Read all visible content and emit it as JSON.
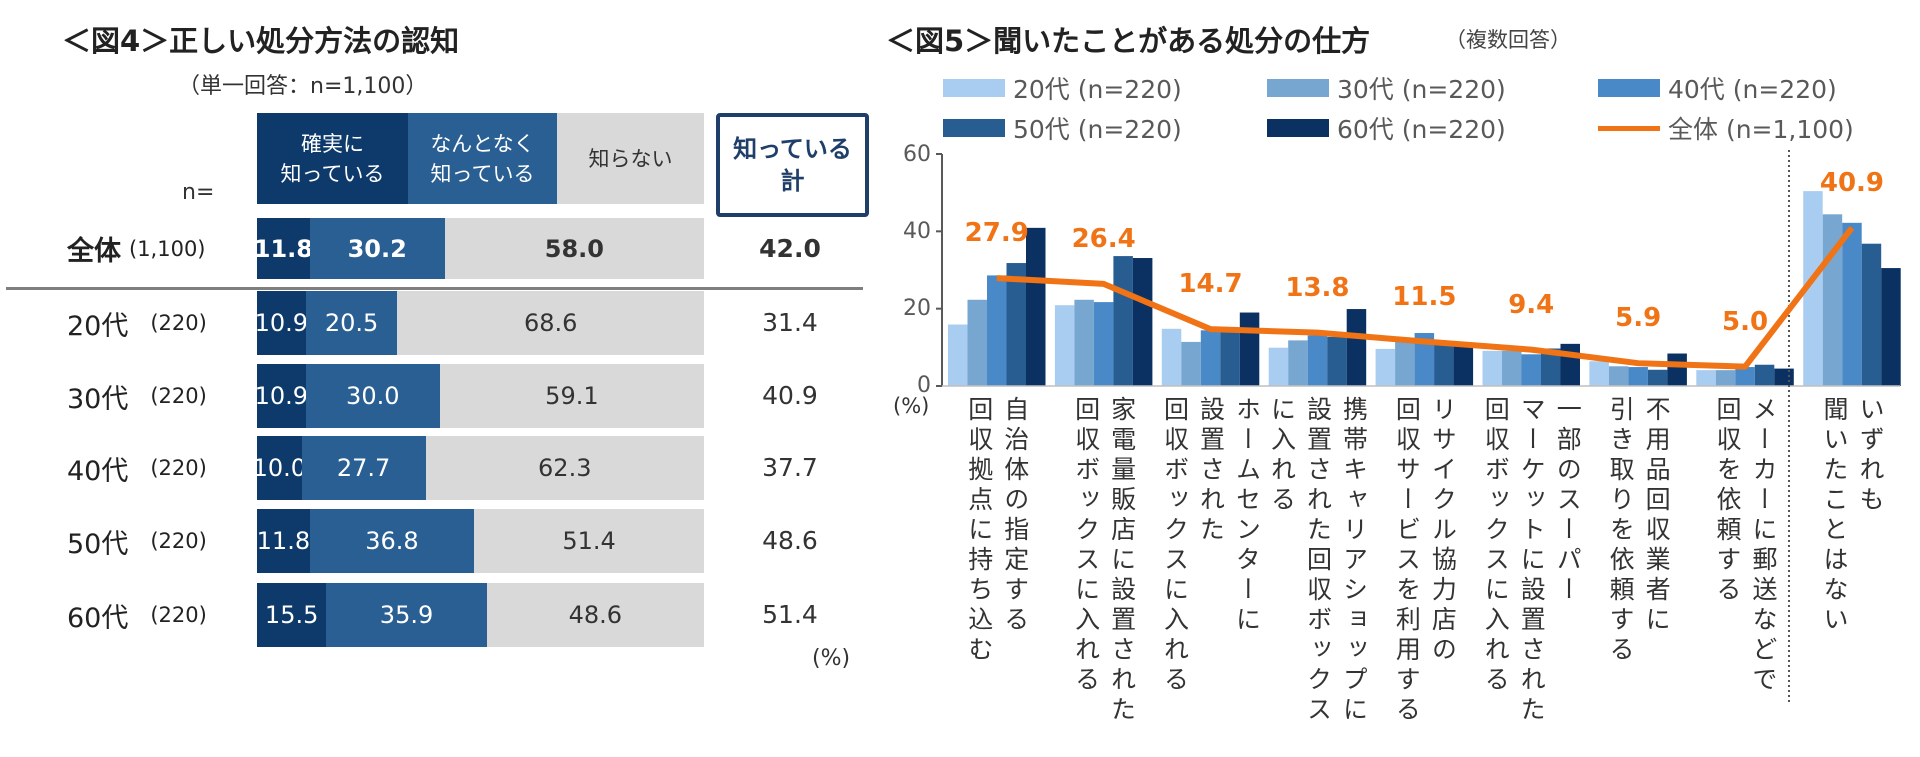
{
  "chart_data": [
    {
      "type": "bar",
      "stacked": true,
      "orientation": "horizontal",
      "title": "＜図4＞正しい処分方法の認知",
      "subtitle": "（単一回答：n=1,100）",
      "n_label": "n=",
      "unit_label": "(%)",
      "legend_headers": [
        "確実に\n知っている",
        "なんとなく\n知っている",
        "知らない"
      ],
      "total_header": "知っている\n計",
      "colors": [
        "#0e3a6b",
        "#2a5f93",
        "#d9d9d9"
      ],
      "categories": [
        {
          "label": "全体",
          "n": "(1,100)",
          "bold": true,
          "values": [
            11.8,
            30.2,
            58.0
          ],
          "values_text": [
            "11.8",
            "30.2",
            "58.0"
          ],
          "total": "42.0"
        },
        {
          "label": "20代",
          "n": "(220)",
          "values": [
            10.9,
            20.5,
            68.6
          ],
          "values_text": [
            "10.9",
            "20.5",
            "68.6"
          ],
          "total": "31.4"
        },
        {
          "label": "30代",
          "n": "(220)",
          "values": [
            10.9,
            30.0,
            59.1
          ],
          "values_text": [
            "10.9",
            "30.0",
            "59.1"
          ],
          "total": "40.9"
        },
        {
          "label": "40代",
          "n": "(220)",
          "values": [
            10.0,
            27.7,
            62.3
          ],
          "values_text": [
            "10.0",
            "27.7",
            "62.3"
          ],
          "total": "37.7"
        },
        {
          "label": "50代",
          "n": "(220)",
          "values": [
            11.8,
            36.8,
            51.4
          ],
          "values_text": [
            "11.8",
            "36.8",
            "51.4"
          ],
          "total": "48.6"
        },
        {
          "label": "60代",
          "n": "(220)",
          "values": [
            15.5,
            35.9,
            48.6
          ],
          "values_text": [
            "15.5",
            "35.9",
            "48.6"
          ],
          "total": "51.4"
        }
      ]
    },
    {
      "type": "bar+line",
      "title": "＜図5＞聞いたことがある処分の仕方",
      "title_note": "（複数回答）",
      "ylabel": "(%)",
      "ylim": [
        0,
        60
      ],
      "yticks": [
        "0",
        "20",
        "40",
        "60"
      ],
      "grid": false,
      "legend_position": "top",
      "categories": [
        "自治体の指定する\n回収拠点に持ち込む",
        "家電量販店に設置された\n回収ボックスに入れる",
        "設置された\n回収ボックスに入れる",
        "携帯キャリアショップに\n設置された回収ボックス\nに入れる",
        "リサイクル協力店の\n回収サービスを利用する",
        "一部のスーパー\nマーケットに設置された\n回収ボックスに入れる",
        "不用品回収業者に\n引き取りを依頼する",
        "メーカーに郵送などで\n回収を依頼する",
        "いずれも\n聞いたことはない"
      ],
      "category_label_override_3": "ホームセンターに\n設置された\n回収ボックスに入れる",
      "series": [
        {
          "name": "20代 (n=220)",
          "color": "#a9cdf0",
          "values": [
            15.9,
            20.9,
            14.8,
            9.9,
            9.6,
            9.1,
            6.4,
            4.1,
            50.4
          ]
        },
        {
          "name": "30代 (n=220)",
          "color": "#77a7d0",
          "values": [
            22.3,
            22.3,
            11.4,
            11.8,
            11.8,
            9.1,
            5.1,
            4.1,
            44.4
          ]
        },
        {
          "name": "40代 (n=220)",
          "color": "#4a89c7",
          "values": [
            28.6,
            21.7,
            14.4,
            13.1,
            13.7,
            8.2,
            4.9,
            4.9,
            42.2
          ]
        },
        {
          "name": "50代 (n=220)",
          "color": "#285d92",
          "values": [
            31.8,
            33.6,
            14.4,
            12.7,
            10.9,
            9.7,
            4.2,
            5.5,
            36.8
          ]
        },
        {
          "name": "60代 (n=220)",
          "color": "#0b3163",
          "values": [
            40.9,
            33.1,
            19.0,
            19.9,
            10.3,
            10.9,
            8.4,
            4.5,
            30.5
          ]
        }
      ],
      "line": {
        "name": "全体 (n=1,100)",
        "color": "#f07316",
        "values": [
          27.9,
          26.4,
          14.7,
          13.8,
          11.5,
          9.4,
          5.9,
          5.0,
          40.9
        ],
        "labels": [
          "27.9",
          "26.4",
          "14.7",
          "13.8",
          "11.5",
          "9.4",
          "5.9",
          "5.0",
          "40.9"
        ]
      }
    }
  ]
}
